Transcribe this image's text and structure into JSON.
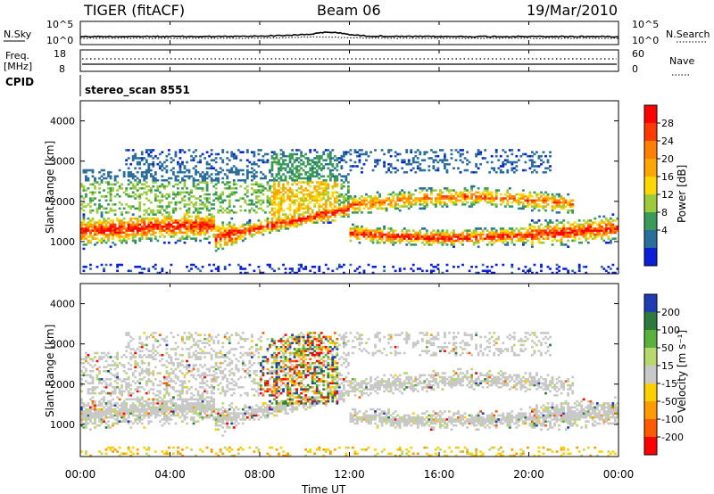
{
  "header": {
    "radar": "TIGER (fitACF)",
    "beam": "Beam 06",
    "date": "19/Mar/2010"
  },
  "noise_panel": {
    "left_label": "N.Sky",
    "right_label": "N.Search",
    "left_ticks": [
      "10^5",
      "10^0"
    ],
    "right_ticks": [
      "10^5",
      "10^0"
    ]
  },
  "freq_panel": {
    "left_label_1": "Freq.",
    "left_label_2": "[MHz]",
    "right_label": "Nave",
    "left_ticks": [
      "18",
      "8"
    ],
    "right_ticks": [
      "60",
      "0"
    ]
  },
  "cpid": {
    "label": "CPID",
    "value": "stereo_scan 8551"
  },
  "x_axis": {
    "label": "Time UT",
    "ticks": [
      "00:00",
      "04:00",
      "08:00",
      "12:00",
      "16:00",
      "20:00",
      "00:00"
    ]
  },
  "power_colorbar": {
    "label": "Power [dB]",
    "ticks": [
      "28",
      "24",
      "20",
      "16",
      "12",
      "8",
      "4"
    ],
    "colors": [
      "#ff0000",
      "#ff3a00",
      "#ff7f00",
      "#ffa500",
      "#ffd700",
      "#9ccc3c",
      "#3a9a5a",
      "#2c6e9a",
      "#0b1fd9"
    ]
  },
  "velocity_colorbar": {
    "label": "Velocity [m s⁻¹]",
    "ticks": [
      "200",
      "100",
      "50",
      "15",
      "-15",
      "-50",
      "-100",
      "-200"
    ],
    "colors": [
      "#1f3cb4",
      "#2d7a3c",
      "#58b13a",
      "#b7d86a",
      "#c8c8c8",
      "#ffd000",
      "#ff9a00",
      "#ff5a00",
      "#ff0000"
    ]
  },
  "chart_data": [
    {
      "type": "heatmap",
      "title": "Power",
      "ylabel": "Slant Range [km]",
      "xlabel": "",
      "y_ticks": [
        "4000",
        "3000",
        "2000",
        "1000"
      ],
      "ylim": [
        200,
        4500
      ],
      "xlim": [
        "00:00",
        "24:00"
      ],
      "colorbar": "Power [dB]"
    },
    {
      "type": "heatmap",
      "title": "Velocity",
      "ylabel": "Slant Range [km]",
      "xlabel": "Time UT",
      "y_ticks": [
        "4000",
        "3000",
        "2000",
        "1000"
      ],
      "ylim": [
        200,
        4500
      ],
      "xlim": [
        "00:00",
        "24:00"
      ],
      "colorbar": "Velocity [m s⁻¹]"
    }
  ]
}
